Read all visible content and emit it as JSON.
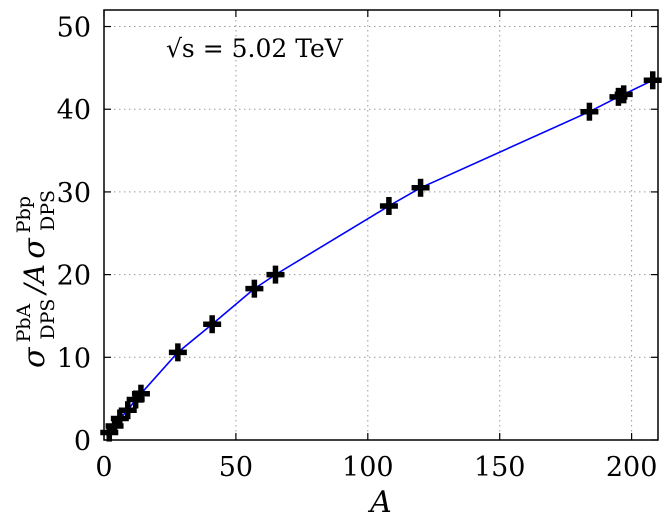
{
  "chart_data": {
    "type": "scatter",
    "annotation": "√s = 5.02 TeV",
    "xlabel": "A",
    "ylabel": "σ^PbA_DPS / A σ^Pbp_DPS",
    "ylabel_parts": {
      "sigma1": "σ",
      "sup1": "PbA",
      "sub1": "DPS",
      "middle": "/A",
      "sigma2": "σ",
      "sup2": "Pbp",
      "sub2": "DPS"
    },
    "xlim": [
      0,
      210
    ],
    "ylim": [
      0,
      52
    ],
    "x_ticks": [
      0,
      50,
      100,
      150,
      200
    ],
    "y_ticks": [
      0,
      10,
      20,
      30,
      40,
      50
    ],
    "grid": true,
    "series": [
      {
        "marker": "plus",
        "color": "#000000",
        "points": [
          {
            "x": 2,
            "y": 0.9
          },
          {
            "x": 4,
            "y": 1.7
          },
          {
            "x": 6,
            "y": 2.6
          },
          {
            "x": 9,
            "y": 3.6
          },
          {
            "x": 12,
            "y": 4.9
          },
          {
            "x": 14,
            "y": 5.6
          },
          {
            "x": 28,
            "y": 10.6
          },
          {
            "x": 41,
            "y": 14.0
          },
          {
            "x": 57,
            "y": 18.3
          },
          {
            "x": 65,
            "y": 20.0
          },
          {
            "x": 108,
            "y": 28.3
          },
          {
            "x": 120,
            "y": 30.5
          },
          {
            "x": 184,
            "y": 39.7
          },
          {
            "x": 195,
            "y": 41.5
          },
          {
            "x": 197,
            "y": 41.8
          },
          {
            "x": 208,
            "y": 43.5
          }
        ]
      },
      {
        "marker": "none",
        "color": "#0000ff",
        "line": true,
        "points": [
          {
            "x": 1,
            "y": 0.5
          },
          {
            "x": 2,
            "y": 0.9
          },
          {
            "x": 4,
            "y": 1.7
          },
          {
            "x": 6,
            "y": 2.6
          },
          {
            "x": 9,
            "y": 3.6
          },
          {
            "x": 12,
            "y": 4.9
          },
          {
            "x": 14,
            "y": 5.6
          },
          {
            "x": 28,
            "y": 10.6
          },
          {
            "x": 41,
            "y": 14.0
          },
          {
            "x": 57,
            "y": 18.3
          },
          {
            "x": 65,
            "y": 20.0
          },
          {
            "x": 108,
            "y": 28.3
          },
          {
            "x": 120,
            "y": 30.5
          },
          {
            "x": 184,
            "y": 39.7
          },
          {
            "x": 195,
            "y": 41.5
          },
          {
            "x": 197,
            "y": 41.8
          },
          {
            "x": 208,
            "y": 43.5
          }
        ]
      }
    ]
  }
}
